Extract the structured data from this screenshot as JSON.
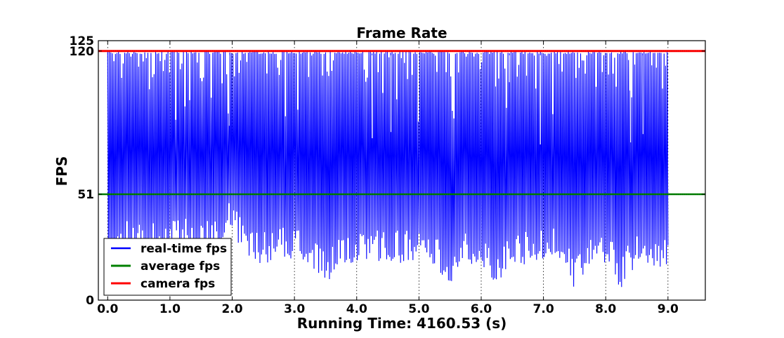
{
  "chart_data": {
    "type": "line",
    "title": "Frame Rate",
    "xlabel": "Running Time: 4160.53 (s)",
    "ylabel": "FPS",
    "xlim": [
      -0.15,
      9.6
    ],
    "ylim": [
      0,
      125
    ],
    "x_ticks": [
      "0.0",
      "1.0",
      "2.0",
      "3.0",
      "4.0",
      "5.0",
      "6.0",
      "7.0",
      "8.0",
      "9.0"
    ],
    "y_ticks": [
      "0",
      "51",
      "120",
      "125"
    ],
    "grid": true,
    "legend": "bottom-left",
    "series": [
      {
        "name": "real-time fps",
        "color": "#0000ff",
        "x_range": [
          0.0,
          9.0
        ],
        "upper_envelope": {
          "x": [
            0.0,
            0.5,
            1.0,
            1.5,
            1.9,
            2.0,
            2.5,
            3.0,
            3.5,
            4.0,
            4.5,
            5.0,
            5.5,
            6.0,
            6.5,
            7.0,
            7.5,
            8.0,
            8.5,
            9.0
          ],
          "y": [
            120,
            120,
            120,
            120,
            120,
            120,
            120,
            120,
            120,
            120,
            120,
            120,
            120,
            120,
            120,
            120,
            120,
            120,
            120,
            120
          ]
        },
        "lower_envelope": {
          "x": [
            0.0,
            0.25,
            0.5,
            0.75,
            1.0,
            1.25,
            1.5,
            1.75,
            1.95,
            2.05,
            2.25,
            2.5,
            2.75,
            3.0,
            3.25,
            3.5,
            3.75,
            4.0,
            4.25,
            4.5,
            4.75,
            5.0,
            5.25,
            5.5,
            5.75,
            6.0,
            6.25,
            6.5,
            6.75,
            7.0,
            7.25,
            7.5,
            7.75,
            8.0,
            8.25,
            8.5,
            8.75,
            9.0
          ],
          "y": [
            5,
            23,
            24,
            22,
            23,
            24,
            23,
            22,
            35,
            28,
            18,
            17,
            19,
            20,
            18,
            6,
            17,
            18,
            18,
            17,
            18,
            19,
            17,
            6,
            17,
            18,
            6,
            18,
            17,
            19,
            20,
            5,
            17,
            18,
            5,
            18,
            17,
            14
          ]
        },
        "deep_dips": [
          {
            "x": 1.95,
            "y": 84
          },
          {
            "x": 2.85,
            "y": 92
          },
          {
            "x": 4.25,
            "y": 78
          },
          {
            "x": 4.55,
            "y": 81
          },
          {
            "x": 6.45,
            "y": 105
          },
          {
            "x": 6.95,
            "y": 75
          },
          {
            "x": 8.4,
            "y": 76
          },
          {
            "x": 8.6,
            "y": 80
          }
        ]
      },
      {
        "name": "average fps",
        "color": "#008000",
        "value": 51
      },
      {
        "name": "camera fps",
        "color": "#ff0000",
        "value": 120
      }
    ]
  }
}
